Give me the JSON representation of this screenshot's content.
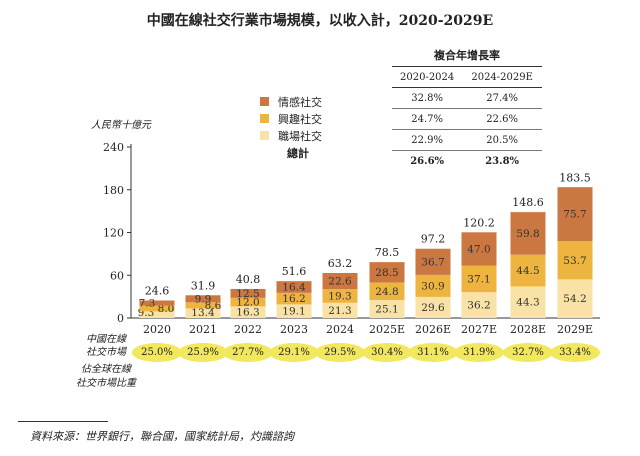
{
  "title": "中國在線社交行業市場規模，以收入計，2020-2029E",
  "cagr": {
    "heading": "複合年增長率",
    "headers": [
      "2020-2024",
      "2024-2029E"
    ],
    "rows": [
      {
        "name": "情感社交",
        "values": [
          "32.8%",
          "27.4%"
        ]
      },
      {
        "name": "興趣社交",
        "values": [
          "24.7%",
          "22.6%"
        ]
      },
      {
        "name": "職場社交",
        "values": [
          "22.9%",
          "20.5%"
        ]
      },
      {
        "name": "總計",
        "values": [
          "26.6%",
          "23.8%"
        ]
      }
    ]
  },
  "legend": {
    "items": [
      {
        "label": "情感社交",
        "color": "#cb7742"
      },
      {
        "label": "興趣社交",
        "color": "#edb440"
      },
      {
        "label": "職場社交",
        "color": "#f8e2a6"
      }
    ],
    "total_label": "總計"
  },
  "penetration": {
    "label_lines": [
      "中國在線",
      "社交市場",
      "佔全球在線",
      "社交市場比重"
    ],
    "values": [
      "25.0%",
      "25.9%",
      "27.7%",
      "29.1%",
      "29.5%",
      "30.4%",
      "31.1%",
      "31.9%",
      "32.7%",
      "33.4%"
    ]
  },
  "source": "資料來源：世界銀行，聯合國，國家統計局，灼識諮詢",
  "chart_data": {
    "type": "bar",
    "stacked": true,
    "title": "中國在線社交行業市場規模，以收入計，2020-2029E",
    "ylabel": "人民幣十億元",
    "xlabel": "",
    "ylim": [
      0,
      240
    ],
    "yticks": [
      0,
      60,
      120,
      180,
      240
    ],
    "categories": [
      "2020",
      "2021",
      "2022",
      "2023",
      "2024",
      "2025E",
      "2026E",
      "2027E",
      "2028E",
      "2029E"
    ],
    "series": [
      {
        "name": "職場社交",
        "color": "#f8e2a6",
        "values": [
          9.3,
          13.4,
          16.3,
          19.1,
          21.3,
          25.1,
          29.6,
          36.2,
          44.3,
          54.2
        ],
        "labels": [
          "9.3",
          "13.4",
          "16.3",
          "19.1",
          "21.3",
          "25.1",
          "29.6",
          "36.2",
          "44.3",
          "54.2"
        ]
      },
      {
        "name": "興趣社交",
        "color": "#edb440",
        "values": [
          8.0,
          8.6,
          12.0,
          16.2,
          19.3,
          24.8,
          30.9,
          37.1,
          44.5,
          53.7
        ],
        "labels": [
          "8.0",
          "8.6",
          "12.0",
          "16.2",
          "19.3",
          "24.8",
          "30.9",
          "37.1",
          "44.5",
          "53.7"
        ]
      },
      {
        "name": "情感社交",
        "color": "#cb7742",
        "values": [
          7.3,
          9.9,
          12.5,
          16.4,
          22.6,
          28.5,
          36.7,
          47.0,
          59.8,
          75.7
        ],
        "labels": [
          "7.3",
          "9.9",
          "12.5",
          "16.4",
          "22.6",
          "28.5",
          "36.7",
          "47.0",
          "59.8",
          "75.7"
        ]
      }
    ],
    "totals": [
      24.6,
      31.9,
      40.8,
      51.6,
      63.2,
      78.5,
      97.2,
      120.2,
      148.6,
      183.5
    ],
    "total_labels": [
      "24.6",
      "31.9",
      "40.8",
      "51.6",
      "63.2",
      "78.5",
      "97.2",
      "120.2",
      "148.6",
      "183.5"
    ]
  }
}
